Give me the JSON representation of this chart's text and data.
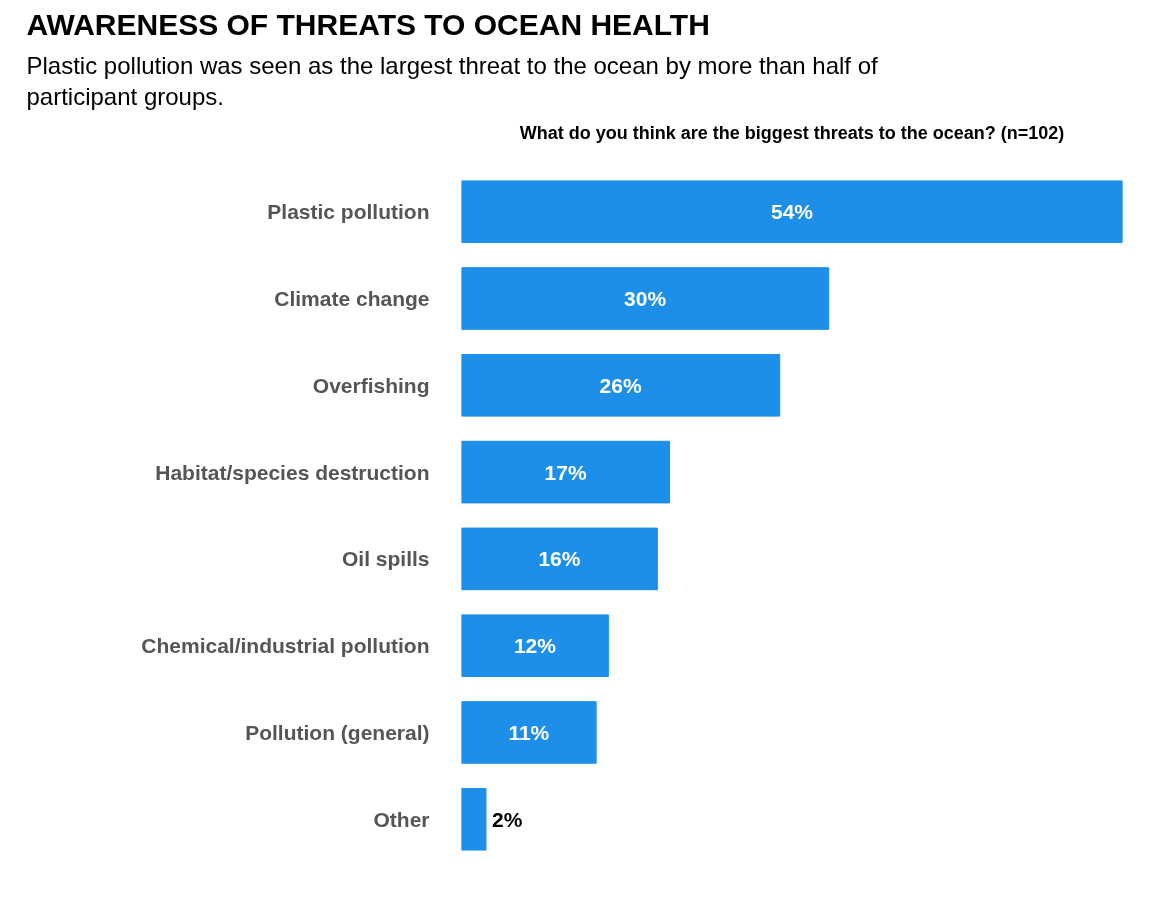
{
  "chart_data": {
    "type": "bar",
    "orientation": "horizontal",
    "title": "AWARENESS OF THREATS TO OCEAN HEALTH",
    "subtitle": "Plastic pollution was seen as the largest threat to the ocean by more than half of participant groups.",
    "annotations": [
      "What do you think are the biggest threats to the ocean? (n=102)"
    ],
    "categories": [
      "Plastic pollution",
      "Climate change",
      "Overfishing",
      "Habitat/species destruction",
      "Oil spills",
      "Chemical/industrial pollution",
      "Pollution (general)",
      "Other"
    ],
    "values": [
      54,
      30,
      26,
      17,
      16,
      12,
      11,
      2
    ],
    "color": "#1e8fe8",
    "data_labels": true,
    "value_labels": [
      "54%",
      "30%",
      "26%",
      "17%",
      "16%",
      "12%",
      "11%",
      "2%"
    ],
    "grid": false
  }
}
